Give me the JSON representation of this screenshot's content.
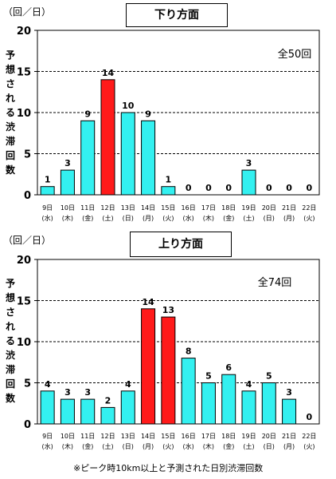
{
  "footnote": "※ピーク時10km以上と予測された日別渋滞回数",
  "chart_data": [
    {
      "type": "bar",
      "unit_label": "（回／日）",
      "title": "下り方面",
      "ylabel": "予想される渋滞回数",
      "total_label": "全50回",
      "ylim": [
        0,
        20
      ],
      "yticks": [
        0,
        5,
        10,
        15,
        20
      ],
      "grid": "dashed horizontal",
      "categories": [
        {
          "date": "9日",
          "dow": "(水)"
        },
        {
          "date": "10日",
          "dow": "(木)"
        },
        {
          "date": "11日",
          "dow": "(金)"
        },
        {
          "date": "12日",
          "dow": "(土)"
        },
        {
          "date": "13日",
          "dow": "(日)"
        },
        {
          "date": "14日",
          "dow": "(月)"
        },
        {
          "date": "15日",
          "dow": "(火)"
        },
        {
          "date": "16日",
          "dow": "(水)"
        },
        {
          "date": "17日",
          "dow": "(木)"
        },
        {
          "date": "18日",
          "dow": "(金)"
        },
        {
          "date": "19日",
          "dow": "(土)"
        },
        {
          "date": "20日",
          "dow": "(日)"
        },
        {
          "date": "21日",
          "dow": "(月)"
        },
        {
          "date": "22日",
          "dow": "(火)"
        }
      ],
      "values": [
        1,
        3,
        9,
        14,
        10,
        9,
        1,
        0,
        0,
        0,
        3,
        0,
        0,
        0
      ],
      "peak_indices": [
        3
      ],
      "colors": {
        "normal": "#33f0f0",
        "peak": "#ff1a1a"
      }
    },
    {
      "type": "bar",
      "unit_label": "（回／日）",
      "title": "上り方面",
      "ylabel": "予想される渋滞回数",
      "total_label": "全74回",
      "ylim": [
        0,
        20
      ],
      "yticks": [
        0,
        5,
        10,
        15,
        20
      ],
      "grid": "dashed horizontal",
      "categories": [
        {
          "date": "9日",
          "dow": "(水)"
        },
        {
          "date": "10日",
          "dow": "(木)"
        },
        {
          "date": "11日",
          "dow": "(金)"
        },
        {
          "date": "12日",
          "dow": "(土)"
        },
        {
          "date": "13日",
          "dow": "(日)"
        },
        {
          "date": "14日",
          "dow": "(月)"
        },
        {
          "date": "15日",
          "dow": "(火)"
        },
        {
          "date": "16日",
          "dow": "(水)"
        },
        {
          "date": "17日",
          "dow": "(木)"
        },
        {
          "date": "18日",
          "dow": "(金)"
        },
        {
          "date": "19日",
          "dow": "(土)"
        },
        {
          "date": "20日",
          "dow": "(日)"
        },
        {
          "date": "21日",
          "dow": "(月)"
        },
        {
          "date": "22日",
          "dow": "(火)"
        }
      ],
      "values": [
        4,
        3,
        3,
        2,
        4,
        14,
        13,
        8,
        5,
        6,
        4,
        5,
        3,
        0
      ],
      "peak_indices": [
        5,
        6
      ],
      "colors": {
        "normal": "#33f0f0",
        "peak": "#ff1a1a"
      }
    }
  ]
}
